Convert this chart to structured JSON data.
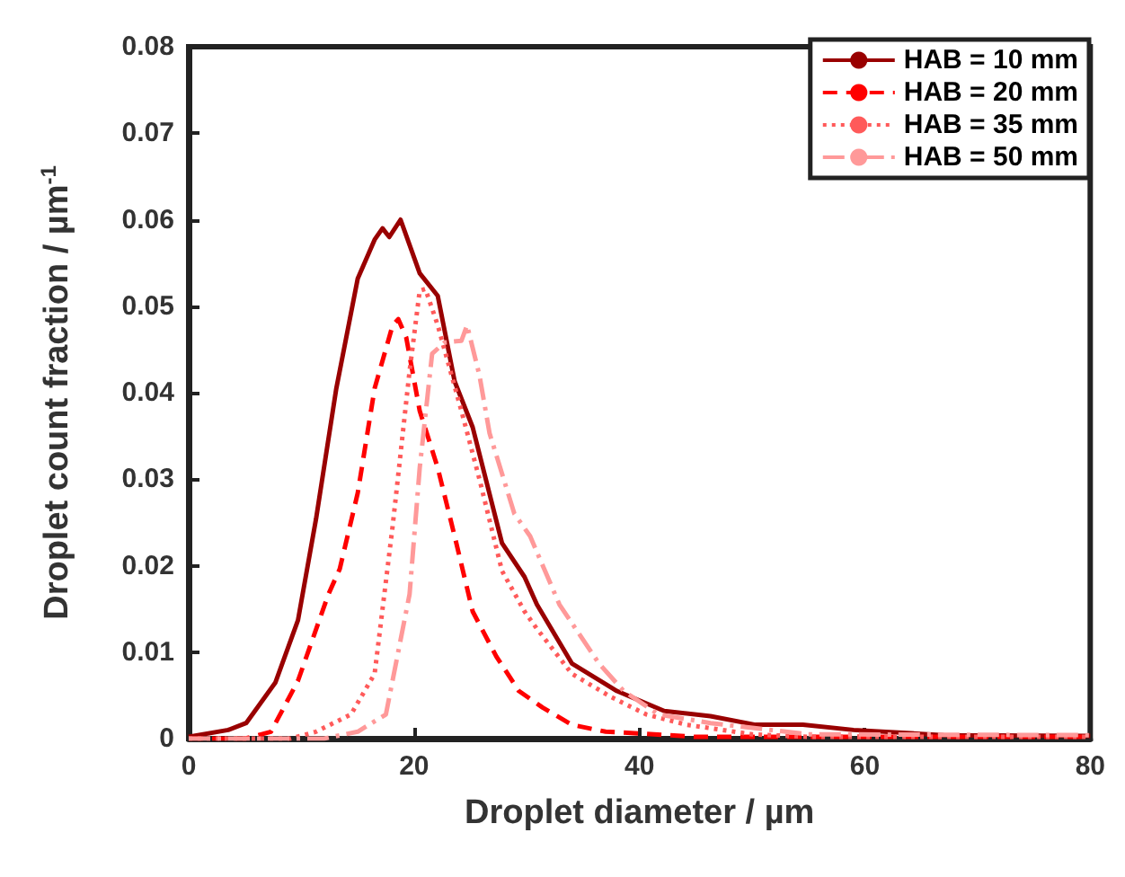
{
  "chart_data": {
    "type": "line",
    "xlabel": "Droplet diameter / µm",
    "ylabel": "Droplet count fraction / µm$^{-1}$",
    "xlim": [
      0,
      80
    ],
    "xticks": [
      0,
      20,
      40,
      60,
      80
    ],
    "ylim": [
      0,
      0.08
    ],
    "yticks": [
      0,
      0.01,
      0.02,
      0.03,
      0.04,
      0.05,
      0.06,
      0.07,
      0.08
    ],
    "grid": false,
    "legend": "top right",
    "marker": "none",
    "series": [
      {
        "name": "HAB = 10 mm",
        "color": "#990000",
        "line_style": "solid",
        "x": [
          0,
          3.5,
          5.1,
          7.7,
          9.7,
          11.3,
          13.1,
          15,
          16.5,
          17.2,
          17.8,
          18.8,
          20.5,
          22.1,
          23.6,
          25.2,
          27.8,
          29.8,
          30.9,
          34,
          38,
          42.2,
          46.3,
          50.3,
          54.5,
          59,
          67,
          80
        ],
        "values": [
          0.0002,
          0.001,
          0.0018,
          0.0065,
          0.0137,
          0.0254,
          0.0405,
          0.0532,
          0.0577,
          0.059,
          0.058,
          0.06,
          0.0538,
          0.0512,
          0.0413,
          0.036,
          0.0226,
          0.0187,
          0.0155,
          0.0087,
          0.0055,
          0.0032,
          0.0026,
          0.0016,
          0.0016,
          0.001,
          0.0004,
          0.0003
        ]
      },
      {
        "name": "HAB = 20 mm",
        "color": "#ff0000",
        "line_style": "dashed",
        "x": [
          0,
          5,
          7.3,
          9.7,
          12.4,
          13.4,
          15,
          16.5,
          18.1,
          18.6,
          19.3,
          20.5,
          22.1,
          23.6,
          25.2,
          27.3,
          29.3,
          31.4,
          34,
          37,
          40,
          45,
          80
        ],
        "values": [
          0,
          0,
          0.0008,
          0.0067,
          0.0167,
          0.0196,
          0.0284,
          0.0405,
          0.0478,
          0.0485,
          0.0464,
          0.0379,
          0.0313,
          0.0234,
          0.0147,
          0.0095,
          0.0055,
          0.0036,
          0.0016,
          0.0008,
          0.0006,
          0.0002,
          0.0002
        ]
      },
      {
        "name": "HAB = 35 mm",
        "color": "#ff5a5a",
        "line_style": "dotted",
        "x": [
          0,
          9,
          11.3,
          14.4,
          16.5,
          18.1,
          19.6,
          20.5,
          21,
          22.1,
          24.2,
          25.8,
          27.8,
          29.8,
          30.9,
          34,
          37.5,
          40.6,
          44.2,
          50,
          55,
          80
        ],
        "values": [
          0,
          0,
          0.0008,
          0.0028,
          0.0075,
          0.0246,
          0.0425,
          0.0518,
          0.052,
          0.0478,
          0.0379,
          0.03,
          0.0194,
          0.0147,
          0.0127,
          0.0075,
          0.0048,
          0.0028,
          0.0016,
          0.0005,
          0.0002,
          0.0002
        ]
      },
      {
        "name": "HAB = 50 mm",
        "color": "#ff9999",
        "line_style": "dashed",
        "x": [
          0,
          12,
          15,
          17.5,
          19.6,
          20.5,
          21.6,
          22.7,
          24.2,
          24.7,
          25.8,
          26.7,
          28.9,
          30.3,
          32.9,
          36.4,
          38.6,
          41.7,
          46.3,
          55,
          80
        ],
        "values": [
          0,
          0,
          0.0008,
          0.0028,
          0.0167,
          0.0313,
          0.0445,
          0.0458,
          0.046,
          0.0478,
          0.042,
          0.0353,
          0.026,
          0.0234,
          0.0155,
          0.0087,
          0.0055,
          0.0028,
          0.0018,
          0.0005,
          0.0004
        ]
      }
    ]
  }
}
